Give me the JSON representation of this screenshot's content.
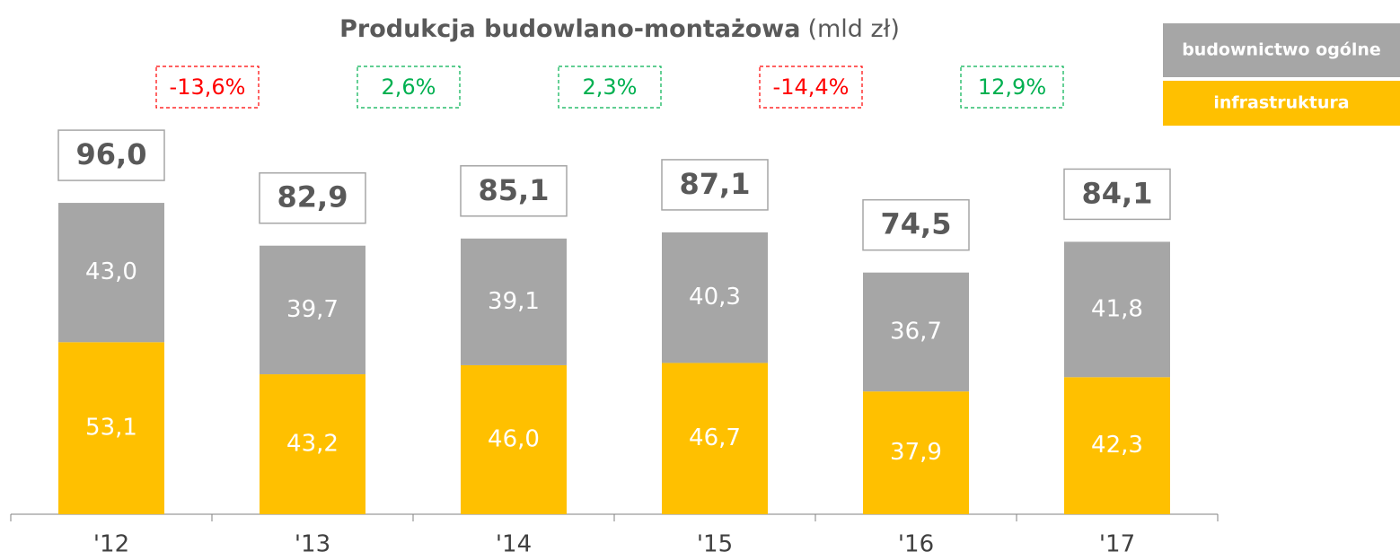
{
  "chart_data": {
    "type": "stacked_bar",
    "title": "Produkcja budowlano-montażowa",
    "title_unit": "(mld zł)",
    "categories": [
      "'12",
      "'13",
      "'14",
      "'15",
      "'16",
      "'17"
    ],
    "series": [
      {
        "name": "infrastruktura",
        "color": "#FFC000",
        "values": [
          53.1,
          43.2,
          46.0,
          46.7,
          37.9,
          42.3
        ],
        "value_labels": [
          "53,1",
          "43,2",
          "46,0",
          "46,7",
          "37,9",
          "42,3"
        ]
      },
      {
        "name": "budownictwo ogólne",
        "color": "#A6A6A6",
        "values": [
          43.0,
          39.7,
          39.1,
          40.3,
          36.7,
          41.8
        ],
        "value_labels": [
          "43,0",
          "39,7",
          "39,1",
          "40,3",
          "36,7",
          "41,8"
        ]
      }
    ],
    "totals": {
      "values": [
        96.0,
        82.9,
        85.1,
        87.1,
        74.5,
        84.1
      ],
      "value_labels": [
        "96,0",
        "82,9",
        "85,1",
        "87,1",
        "74,5",
        "84,1"
      ]
    },
    "changes": {
      "values": [
        -13.6,
        2.6,
        2.3,
        -14.4,
        12.9
      ],
      "value_labels": [
        "-13,6%",
        "2,6%",
        "2,3%",
        "-14,4%",
        "12,9%"
      ],
      "positive_color": "#00B050",
      "negative_color": "#FF0000"
    }
  }
}
